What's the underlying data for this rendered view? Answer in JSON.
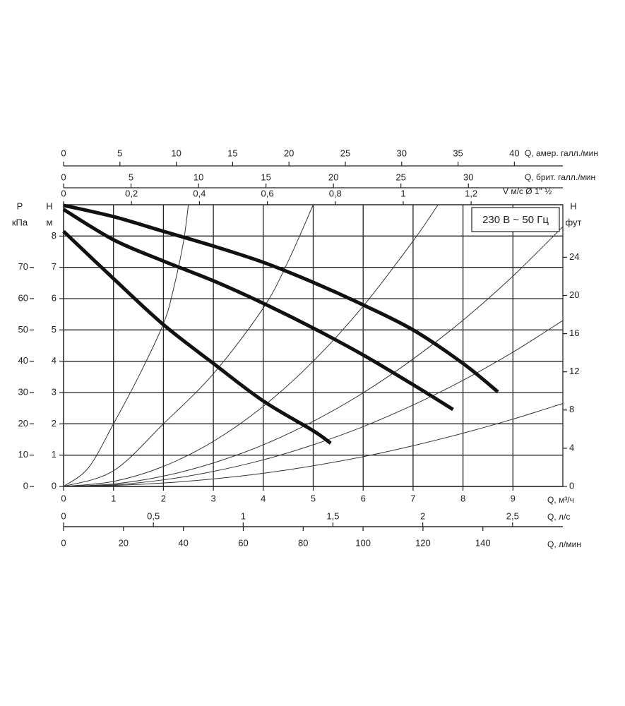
{
  "chart_data": {
    "type": "line",
    "annotation": "230 В ~ 50 Гц",
    "grid": true,
    "x_axes": [
      {
        "label": "Q, м³/ч",
        "xlim": [
          0,
          10
        ],
        "xticks": [
          0,
          1,
          2,
          3,
          4,
          5,
          6,
          7,
          8,
          9
        ]
      },
      {
        "label": "Q, л/с",
        "xlim": [
          0,
          2.78
        ],
        "xticks": [
          0,
          {
            "value": 0.5,
            "label": "0,5"
          },
          1,
          {
            "value": 1.5,
            "label": "1,5"
          },
          2,
          {
            "value": 2.5,
            "label": "2,5"
          }
        ]
      },
      {
        "label": "Q, л/мин",
        "xlim": [
          0,
          166.7
        ],
        "xticks": [
          0,
          20,
          40,
          60,
          80,
          100,
          120,
          140
        ]
      },
      {
        "label": "Q, амер. галл./мин",
        "xlim": [
          0,
          44.3
        ],
        "xticks": [
          0,
          5,
          10,
          15,
          20,
          25,
          30,
          35,
          40
        ]
      },
      {
        "label": "Q, брит. галл./мин",
        "xlim": [
          0,
          37
        ],
        "xticks": [
          0,
          5,
          10,
          15,
          20,
          25,
          30
        ]
      },
      {
        "label": "V м/с Ø 1\" ½",
        "xlim": [
          0,
          1.47
        ],
        "xticks": [
          0,
          {
            "value": 0.2,
            "label": "0,2"
          },
          {
            "value": 0.4,
            "label": "0,4"
          },
          {
            "value": 0.6,
            "label": "0,6"
          },
          {
            "value": 0.8,
            "label": "0,8"
          },
          1,
          {
            "value": 1.2,
            "label": "1,2"
          }
        ]
      }
    ],
    "y_axes": [
      {
        "label": "H",
        "unit": "м",
        "ylim": [
          0,
          9
        ],
        "yticks": [
          0,
          1,
          2,
          3,
          4,
          5,
          6,
          7,
          8
        ]
      },
      {
        "label": "P",
        "unit": "кПа",
        "ylim": [
          0,
          90
        ],
        "yticks": [
          0,
          10,
          20,
          30,
          40,
          50,
          60,
          70
        ]
      },
      {
        "label": "H",
        "unit": "фут",
        "ylim": [
          0,
          29.5
        ],
        "yticks": [
          0,
          4,
          8,
          12,
          16,
          20,
          24
        ]
      }
    ],
    "pump_curves": [
      {
        "color": "#111111",
        "x": [
          0,
          1,
          2,
          3,
          4,
          5,
          6,
          7,
          8,
          8.7
        ],
        "values": [
          8.98,
          8.62,
          8.15,
          7.68,
          7.16,
          6.52,
          5.8,
          5.0,
          3.93,
          3.02
        ]
      },
      {
        "color": "#111111",
        "x": [
          0,
          1,
          2,
          3,
          4,
          5,
          6,
          7,
          7.8
        ],
        "values": [
          8.85,
          7.88,
          7.2,
          6.57,
          5.85,
          5.06,
          4.2,
          3.25,
          2.46
        ]
      },
      {
        "color": "#111111",
        "x": [
          0,
          1,
          2,
          3,
          4,
          5,
          5.35
        ],
        "values": [
          8.15,
          6.64,
          5.17,
          3.93,
          2.73,
          1.78,
          1.38
        ]
      }
    ],
    "system_curves": [
      {
        "color": "#333333",
        "x": [
          0,
          0.5,
          1,
          1.5,
          2,
          2.2,
          2.4,
          2.5
        ],
        "values": [
          0,
          0.6,
          2.0,
          3.5,
          5.2,
          6.3,
          7.8,
          9.0
        ]
      },
      {
        "color": "#333333",
        "x": [
          0,
          1,
          2,
          3,
          4,
          4.5,
          5
        ],
        "values": [
          0,
          0.5,
          2.0,
          3.6,
          5.7,
          7.2,
          9.0
        ]
      },
      {
        "color": "#333333",
        "x": [
          0,
          1,
          2,
          3,
          4,
          5,
          6,
          7,
          7.5
        ],
        "values": [
          0,
          0.16,
          0.64,
          1.44,
          2.56,
          4.0,
          5.76,
          7.84,
          9.0
        ]
      },
      {
        "color": "#333333",
        "x": [
          0,
          1,
          2,
          3,
          4,
          5,
          6,
          7,
          8,
          9,
          10
        ],
        "values": [
          0,
          0.08,
          0.33,
          0.75,
          1.33,
          2.08,
          2.99,
          4.07,
          5.31,
          6.72,
          8.3
        ]
      },
      {
        "color": "#333333",
        "x": [
          0,
          1,
          2,
          3,
          4,
          5,
          6,
          7,
          8,
          9,
          10
        ],
        "values": [
          0,
          0.05,
          0.21,
          0.48,
          0.85,
          1.33,
          1.91,
          2.6,
          3.39,
          4.29,
          5.3
        ]
      },
      {
        "color": "#333333",
        "x": [
          0,
          1,
          2,
          3,
          4,
          5,
          6,
          7,
          8,
          9,
          10
        ],
        "values": [
          0,
          0.03,
          0.11,
          0.24,
          0.42,
          0.66,
          0.95,
          1.3,
          1.7,
          2.15,
          2.65
        ]
      }
    ]
  }
}
